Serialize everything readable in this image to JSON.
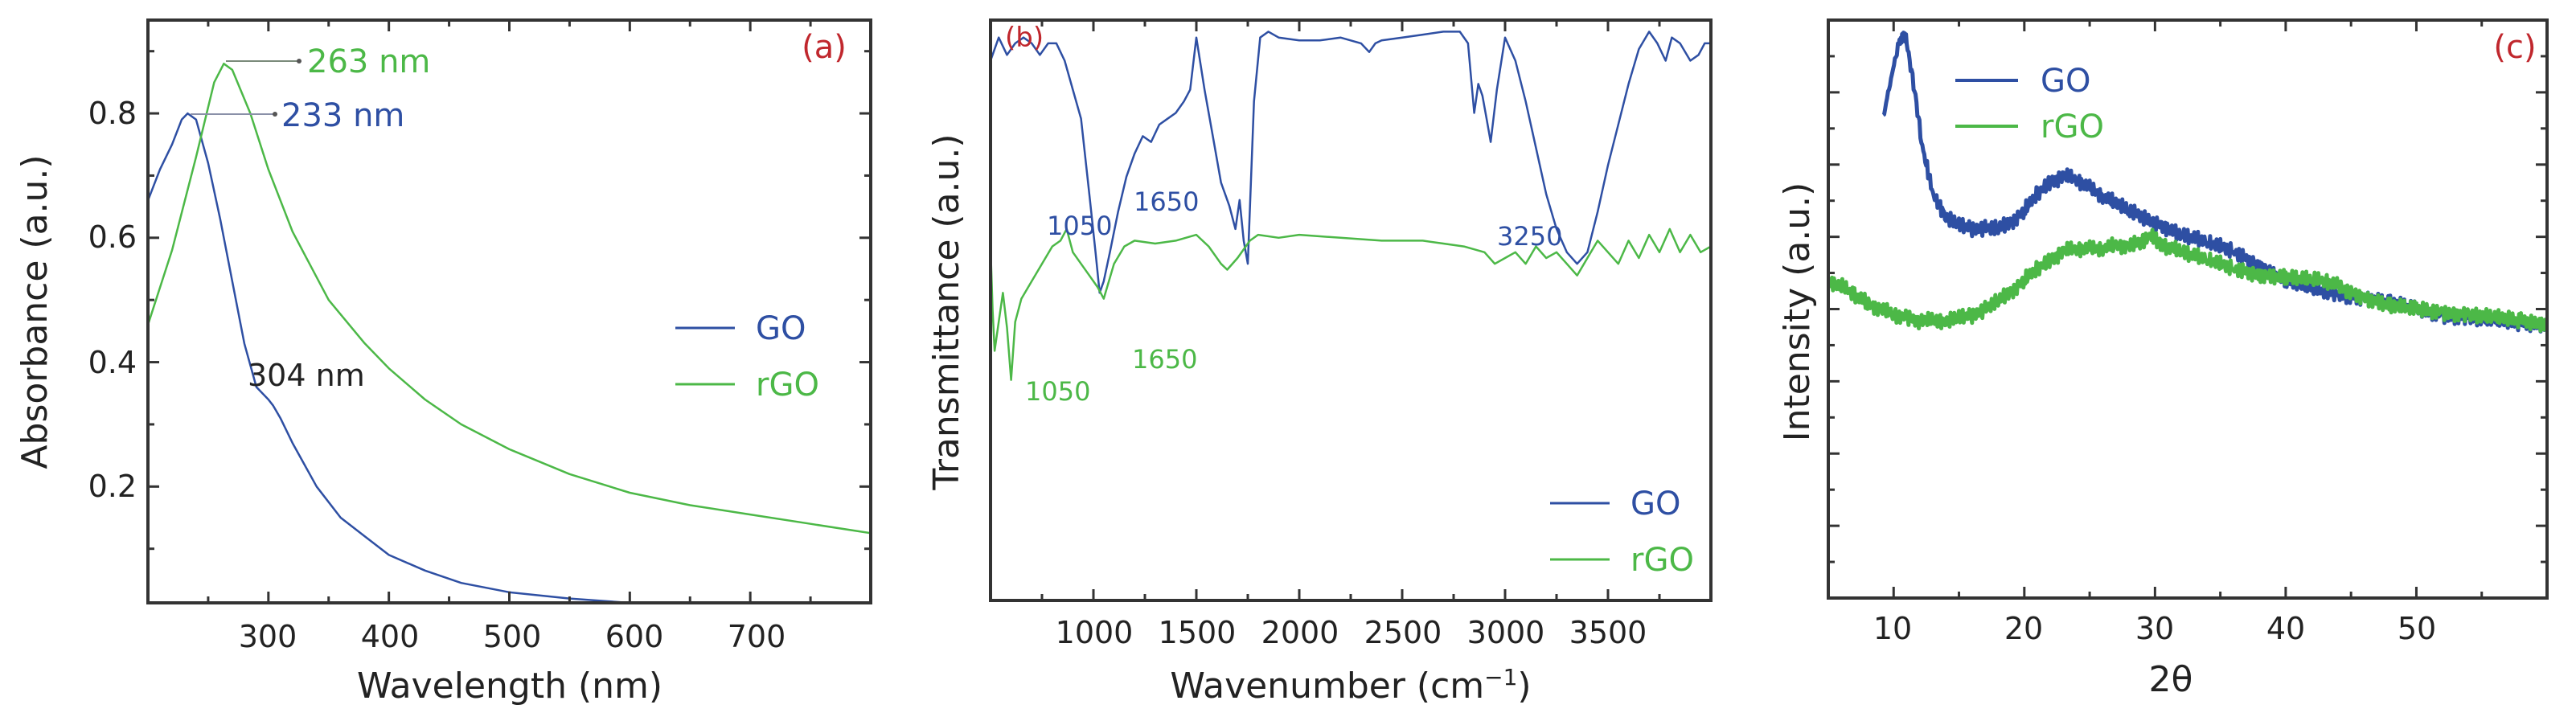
{
  "colors": {
    "go": "#2e4fa3",
    "rgo": "#4cb847",
    "axis": "#333333",
    "panel_tag": "#c0272d",
    "annotation_dark": "#222222"
  },
  "chart_data": [
    {
      "panel": "(a)",
      "type": "line",
      "title": "",
      "xlabel": "Wavelength (nm)",
      "ylabel": "Absorbance (a.u.)",
      "xlim": [
        200,
        800
      ],
      "ylim": [
        0.013,
        0.95
      ],
      "xticks": [
        300,
        400,
        500,
        600,
        700
      ],
      "yticks": [
        0.2,
        0.4,
        0.6,
        0.8
      ],
      "grid": false,
      "legend_position": "center-right",
      "series": [
        {
          "name": "GO",
          "color": "#2e4fa3",
          "x": [
            200,
            210,
            220,
            228,
            233,
            240,
            250,
            260,
            270,
            280,
            290,
            300,
            304,
            310,
            320,
            340,
            360,
            380,
            400,
            430,
            460,
            500,
            550,
            600,
            650,
            700,
            800
          ],
          "y": [
            0.66,
            0.71,
            0.75,
            0.79,
            0.8,
            0.79,
            0.72,
            0.63,
            0.53,
            0.43,
            0.36,
            0.34,
            0.33,
            0.31,
            0.27,
            0.2,
            0.15,
            0.12,
            0.09,
            0.065,
            0.045,
            0.03,
            0.02,
            0.013,
            0.01,
            0.008,
            0.006
          ]
        },
        {
          "name": "rGO",
          "color": "#4cb847",
          "x": [
            200,
            220,
            240,
            255,
            263,
            270,
            285,
            300,
            320,
            350,
            380,
            400,
            430,
            460,
            500,
            550,
            600,
            650,
            700,
            750,
            800
          ],
          "y": [
            0.46,
            0.58,
            0.73,
            0.85,
            0.88,
            0.87,
            0.8,
            0.71,
            0.61,
            0.5,
            0.43,
            0.39,
            0.34,
            0.3,
            0.26,
            0.22,
            0.19,
            0.17,
            0.155,
            0.14,
            0.125
          ]
        }
      ],
      "annotations": [
        {
          "text": "263 nm",
          "x": 263,
          "y": 0.88,
          "color": "#4cb847",
          "arrow": true
        },
        {
          "text": "233 nm",
          "x": 233,
          "y": 0.8,
          "color": "#2e4fa3",
          "arrow": true
        },
        {
          "text": "304 nm",
          "x": 304,
          "y": 0.33,
          "color": "#222222",
          "arrow": false
        }
      ]
    },
    {
      "panel": "(b)",
      "type": "line",
      "title": "",
      "xlabel": "Wavenumber (cm⁻¹)",
      "ylabel": "Transmittance (a.u.)",
      "xlim": [
        500,
        4000
      ],
      "ylim": [
        0,
        100
      ],
      "xticks": [
        1000,
        1500,
        2000,
        2500,
        3000,
        3500
      ],
      "yticks": [],
      "grid": false,
      "legend_position": "lower-right",
      "series": [
        {
          "name": "GO",
          "color": "#2e4fa3",
          "x": [
            500,
            540,
            580,
            620,
            660,
            700,
            740,
            780,
            820,
            860,
            900,
            940,
            980,
            1010,
            1030,
            1050,
            1080,
            1120,
            1160,
            1200,
            1240,
            1280,
            1320,
            1360,
            1400,
            1440,
            1470,
            1500,
            1540,
            1580,
            1620,
            1660,
            1690,
            1710,
            1730,
            1750,
            1780,
            1810,
            1850,
            1900,
            2000,
            2100,
            2200,
            2300,
            2340,
            2370,
            2400,
            2500,
            2600,
            2700,
            2780,
            2820,
            2850,
            2870,
            2890,
            2910,
            2930,
            2960,
            3000,
            3050,
            3100,
            3150,
            3200,
            3250,
            3300,
            3350,
            3400,
            3450,
            3500,
            3550,
            3600,
            3650,
            3700,
            3740,
            3780,
            3810,
            3850,
            3900,
            3940,
            3970,
            4000
          ],
          "y": [
            93,
            97,
            94,
            96,
            97,
            96,
            94,
            96,
            96,
            93,
            88,
            83,
            70,
            60,
            53,
            55,
            60,
            67,
            73,
            77,
            80,
            79,
            82,
            83,
            84,
            86,
            88,
            97,
            88,
            80,
            72,
            68,
            64,
            69,
            62,
            58,
            86,
            97,
            98,
            97,
            96.5,
            96.5,
            97,
            96,
            94.5,
            96,
            96.5,
            97,
            97.5,
            98,
            98,
            96,
            84,
            89,
            87,
            83,
            79,
            88,
            97,
            93,
            86,
            78,
            70,
            64,
            60,
            58,
            60,
            67,
            75,
            82,
            89,
            95,
            98,
            96,
            93,
            97,
            96,
            93,
            94,
            96,
            96
          ]
        },
        {
          "name": "rGO",
          "color": "#4cb847",
          "x": [
            500,
            510,
            520,
            540,
            560,
            580,
            600,
            620,
            650,
            700,
            750,
            800,
            840,
            870,
            900,
            940,
            980,
            1020,
            1050,
            1100,
            1150,
            1200,
            1300,
            1400,
            1500,
            1560,
            1620,
            1650,
            1700,
            1760,
            1800,
            1900,
            2000,
            2200,
            2400,
            2600,
            2700,
            2800,
            2900,
            2950,
            3000,
            3050,
            3100,
            3150,
            3200,
            3250,
            3300,
            3350,
            3400,
            3450,
            3500,
            3550,
            3600,
            3650,
            3700,
            3750,
            3800,
            3850,
            3900,
            3950,
            4000
          ],
          "y": [
            61,
            50,
            43,
            48,
            53,
            47,
            38,
            48,
            52,
            55,
            58,
            61,
            62,
            64,
            60,
            58,
            56,
            54,
            52,
            58,
            61,
            62,
            61.5,
            62,
            63,
            61,
            58,
            57,
            59,
            62,
            63,
            62.5,
            63,
            62.5,
            62,
            62,
            61.5,
            61,
            60,
            58,
            59,
            60,
            58,
            61,
            59,
            60,
            58,
            56,
            59,
            62,
            60,
            58,
            62,
            59,
            63,
            60,
            64,
            60,
            63,
            60,
            61
          ]
        }
      ],
      "annotations": [
        {
          "text": "1050",
          "x": 1050,
          "series": "GO",
          "color": "#2e4fa3"
        },
        {
          "text": "1650",
          "x": 1650,
          "series": "GO",
          "color": "#2e4fa3"
        },
        {
          "text": "3250",
          "x": 3250,
          "series": "GO",
          "color": "#2e4fa3"
        },
        {
          "text": "1050",
          "x": 1050,
          "series": "rGO",
          "color": "#4cb847"
        },
        {
          "text": "1650",
          "x": 1650,
          "series": "rGO",
          "color": "#4cb847"
        }
      ]
    },
    {
      "panel": "(c)",
      "type": "line",
      "title": "",
      "xlabel": "2θ",
      "ylabel": "Intensity (a.u.)",
      "xlim": [
        5,
        60
      ],
      "ylim": [
        0,
        100
      ],
      "xticks": [
        10,
        20,
        30,
        40,
        50
      ],
      "yticks": [],
      "grid": false,
      "legend_position": "upper-left",
      "series": [
        {
          "name": "GO",
          "color": "#2e4fa3",
          "x": [
            9.2,
            9.8,
            10.4,
            10.7,
            11.0,
            11.6,
            12.2,
            13.0,
            14.0,
            15.0,
            16.0,
            17.0,
            18.0,
            19.0,
            20.0,
            21.0,
            22.0,
            23.0,
            24.0,
            25.0,
            26.0,
            28.0,
            30.0,
            32.0,
            34.0,
            36.0,
            38.0,
            40.0,
            42.0,
            44.0,
            46.0,
            48.0,
            50.0,
            52.0,
            54.0,
            56.0,
            58.0,
            60.0
          ],
          "y": [
            83,
            90,
            96,
            98,
            96,
            88,
            78,
            70,
            66,
            64.5,
            64,
            64,
            64,
            65,
            67,
            70,
            72,
            73,
            72.5,
            71,
            69.5,
            67,
            65,
            63,
            61.5,
            60,
            57.5,
            55,
            53.5,
            52.5,
            52,
            51,
            50,
            49,
            48.5,
            48,
            47.5,
            47.5
          ]
        },
        {
          "name": "rGO",
          "color": "#4cb847",
          "x": [
            5,
            6,
            7,
            8,
            9,
            10,
            11,
            12,
            13,
            14,
            15,
            16,
            17,
            18,
            19,
            20,
            21,
            22,
            23,
            24,
            25,
            26,
            27,
            28,
            29,
            29.8,
            30.5,
            32,
            34,
            36,
            38,
            40,
            42,
            43,
            44,
            46,
            48,
            50,
            52,
            54,
            56,
            58,
            60
          ],
          "y": [
            55,
            54,
            52.5,
            51,
            50,
            49,
            48.5,
            48,
            48,
            48,
            48.5,
            49,
            50,
            51.5,
            53,
            55,
            57,
            58.5,
            60,
            60.5,
            60.5,
            60.5,
            61,
            61,
            61.5,
            63,
            61,
            60,
            58.5,
            57,
            56,
            55.5,
            55,
            55,
            54,
            52,
            50.5,
            50,
            49.5,
            49,
            48.5,
            48,
            47.5
          ]
        }
      ],
      "annotations": []
    }
  ],
  "panels": {
    "a": {
      "tag": "(a)",
      "xlabel": "Wavelength (nm)",
      "ylabel": "Absorbance (a.u.)",
      "xtick_labels": [
        "300",
        "400",
        "500",
        "600",
        "700"
      ],
      "ytick_labels": [
        "0.2",
        "0.4",
        "0.6",
        "0.8"
      ],
      "legend": [
        {
          "label": "GO"
        },
        {
          "label": "rGO"
        }
      ],
      "annotations": [
        "263 nm",
        "233 nm",
        "304 nm"
      ]
    },
    "b": {
      "tag": "(b)",
      "xlabel": "Wavenumber (cm",
      "xlabel_sup": "−1",
      "xlabel_end": ")",
      "ylabel": "Transmittance (a.u.)",
      "xtick_labels": [
        "1000",
        "1500",
        "2000",
        "2500",
        "3000",
        "3500"
      ],
      "legend": [
        {
          "label": "GO"
        },
        {
          "label": "rGO"
        }
      ],
      "annotations": [
        "1050",
        "1650",
        "3250",
        "1050",
        "1650"
      ]
    },
    "c": {
      "tag": "(c)",
      "xlabel": "2θ",
      "ylabel": "Intensity (a.u.)",
      "xtick_labels": [
        "10",
        "20",
        "30",
        "40",
        "50"
      ],
      "legend": [
        {
          "label": "GO"
        },
        {
          "label": "rGO"
        }
      ]
    }
  }
}
